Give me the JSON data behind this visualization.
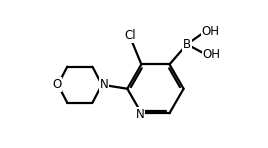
{
  "bg_color": "#ffffff",
  "line_color": "#000000",
  "line_width": 1.6,
  "font_size": 8.5,
  "figsize": [
    2.68,
    1.48
  ],
  "dpi": 100,
  "xlim": [
    0,
    10
  ],
  "ylim": [
    0,
    5.5
  ]
}
